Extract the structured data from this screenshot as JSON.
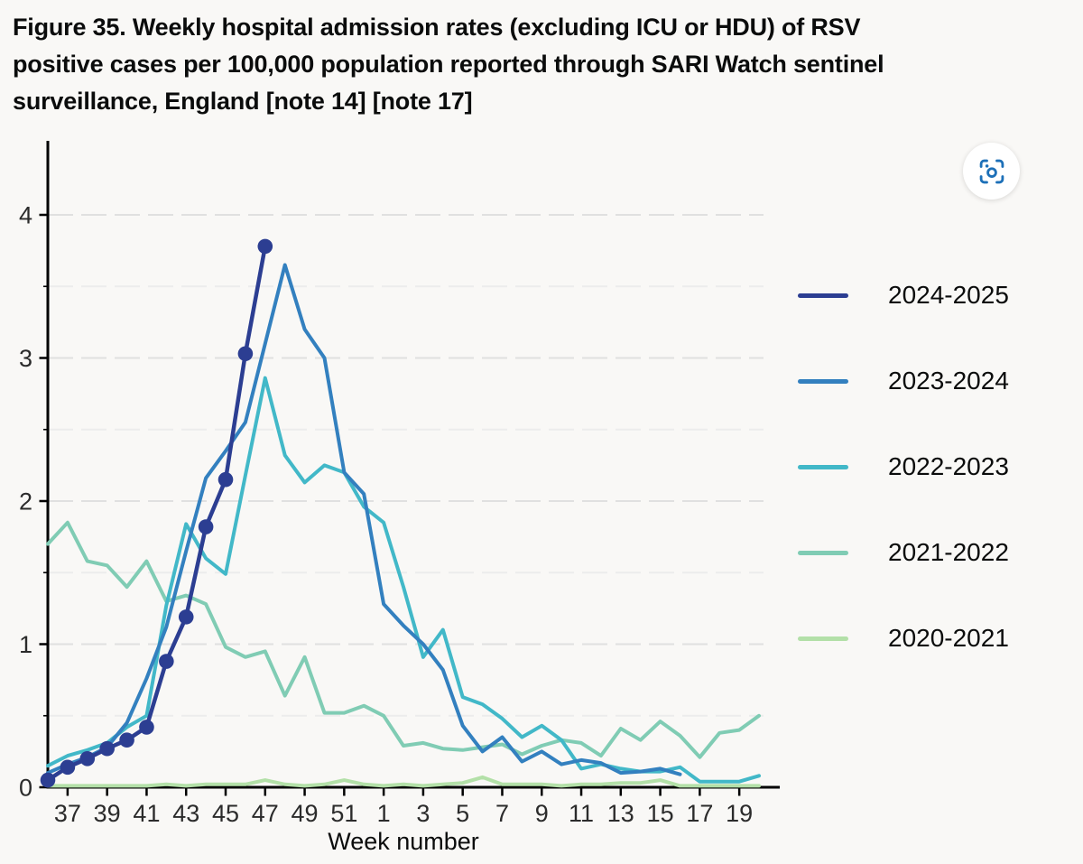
{
  "title_lines": [
    "Figure 35. Weekly hospital admission rates (excluding ICU or HDU) of RSV",
    "positive cases per 100,000 population reported through SARI Watch sentinel",
    "surveillance, England [note 14] [note 17]"
  ],
  "title_full": "Figure 35. Weekly hospital admission rates (excluding ICU or HDU) of RSV positive cases per 100,000 population reported through SARI Watch sentinel surveillance, England [note 14] [note 17]",
  "toolbar": {
    "screenshot_icon": "focus-viewfinder",
    "icon_color": "#1d70b8"
  },
  "chart_data": {
    "type": "line",
    "title": "",
    "xlabel": "Week number",
    "ylabel": "",
    "ylim": [
      0,
      4.5
    ],
    "y_ticks": [
      0,
      1,
      2,
      3,
      4
    ],
    "y_minor_step": 0.5,
    "grid": {
      "horizontal": true,
      "dashed": true
    },
    "legend_position": "right",
    "weeks": [
      36,
      37,
      38,
      39,
      40,
      41,
      42,
      43,
      44,
      45,
      46,
      47,
      48,
      49,
      50,
      51,
      52,
      1,
      2,
      3,
      4,
      5,
      6,
      7,
      8,
      9,
      10,
      11,
      12,
      13,
      14,
      15,
      16,
      17,
      18,
      19,
      20
    ],
    "x_tick_labels": [
      "37",
      "39",
      "41",
      "43",
      "45",
      "47",
      "49",
      "51",
      "1",
      "3",
      "5",
      "7",
      "9",
      "11",
      "13",
      "15",
      "17",
      "19"
    ],
    "series": [
      {
        "name": "2024-2025",
        "color": "#2c3e92",
        "marker": true,
        "values": [
          0.05,
          0.14,
          0.2,
          0.27,
          0.33,
          0.42,
          0.88,
          1.19,
          1.82,
          2.15,
          3.03,
          3.78,
          null,
          null,
          null,
          null,
          null,
          null,
          null,
          null,
          null,
          null,
          null,
          null,
          null,
          null,
          null,
          null,
          null,
          null,
          null,
          null,
          null,
          null,
          null,
          null,
          null
        ]
      },
      {
        "name": "2023-2024",
        "color": "#3380bf",
        "marker": false,
        "values": [
          0.1,
          0.16,
          0.21,
          0.28,
          0.45,
          0.76,
          1.12,
          1.65,
          2.16,
          2.35,
          2.55,
          3.1,
          3.65,
          3.2,
          3.0,
          2.2,
          2.05,
          1.28,
          1.13,
          1.0,
          0.82,
          0.43,
          0.25,
          0.35,
          0.18,
          0.25,
          0.16,
          0.19,
          0.17,
          0.1,
          0.11,
          0.13,
          0.09,
          null,
          null,
          null,
          null
        ]
      },
      {
        "name": "2022-2023",
        "color": "#42b8c8",
        "marker": false,
        "values": [
          0.15,
          0.22,
          0.26,
          0.31,
          0.42,
          0.5,
          1.27,
          1.84,
          1.6,
          1.49,
          2.18,
          2.86,
          2.32,
          2.13,
          2.25,
          2.2,
          1.96,
          1.85,
          1.4,
          0.91,
          1.1,
          0.63,
          0.58,
          0.48,
          0.35,
          0.43,
          0.33,
          0.13,
          0.16,
          0.13,
          0.11,
          0.11,
          0.14,
          0.04,
          0.04,
          0.04,
          0.08
        ]
      },
      {
        "name": "2021-2022",
        "color": "#80ccb4",
        "marker": false,
        "values": [
          1.7,
          1.85,
          1.58,
          1.55,
          1.4,
          1.58,
          1.3,
          1.34,
          1.28,
          0.98,
          0.91,
          0.95,
          0.64,
          0.91,
          0.52,
          0.52,
          0.57,
          0.5,
          0.29,
          0.31,
          0.27,
          0.26,
          0.28,
          0.3,
          0.23,
          0.29,
          0.33,
          0.31,
          0.22,
          0.41,
          0.33,
          0.46,
          0.36,
          0.21,
          0.38,
          0.4,
          0.5
        ]
      },
      {
        "name": "2020-2021",
        "color": "#b3e0a8",
        "marker": false,
        "values": [
          0.01,
          0.01,
          0.01,
          0.01,
          0.01,
          0.01,
          0.02,
          0.01,
          0.02,
          0.02,
          0.02,
          0.05,
          0.02,
          0.01,
          0.02,
          0.05,
          0.02,
          0.01,
          0.02,
          0.01,
          0.02,
          0.03,
          0.07,
          0.02,
          0.02,
          0.02,
          0.01,
          0.02,
          0.02,
          0.03,
          0.03,
          0.05,
          0.01,
          0.01,
          0.01,
          0.01,
          0.01
        ]
      }
    ]
  }
}
